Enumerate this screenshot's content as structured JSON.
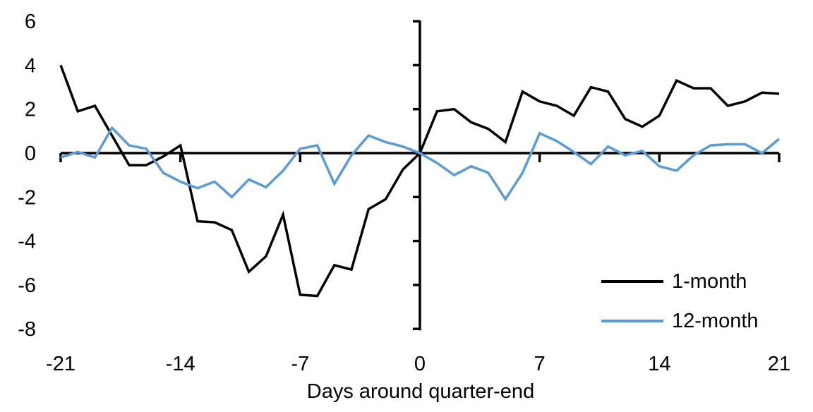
{
  "chart_data": {
    "type": "line",
    "title": "",
    "xlabel": "Days around quarter-end",
    "ylabel": "",
    "xlim": [
      -21,
      21
    ],
    "ylim": [
      -8,
      6
    ],
    "x_ticks": [
      -21,
      -14,
      -7,
      0,
      7,
      14,
      21
    ],
    "y_ticks": [
      6,
      4,
      2,
      0,
      -2,
      -4,
      -6,
      -8
    ],
    "grid": "off",
    "legend_position": "inside-lower-right",
    "background": "#FFFFFF",
    "axis_color": "#000000",
    "text_color": "#000000",
    "x": [
      -21,
      -20,
      -19,
      -18,
      -17,
      -16,
      -15,
      -14,
      -13,
      -12,
      -11,
      -10,
      -9,
      -8,
      -7,
      -6,
      -5,
      -4,
      -3,
      -2,
      -1,
      0,
      1,
      2,
      3,
      4,
      5,
      6,
      7,
      8,
      9,
      10,
      11,
      12,
      13,
      14,
      15,
      16,
      17,
      18,
      19,
      20,
      21
    ],
    "series": [
      {
        "name": "1-month",
        "color": "#000000",
        "values": [
          4.0,
          1.9,
          2.15,
          0.8,
          -0.55,
          -0.55,
          -0.15,
          0.35,
          -3.1,
          -3.15,
          -3.5,
          -5.4,
          -4.7,
          -2.8,
          -6.45,
          -6.5,
          -5.1,
          -5.3,
          -2.55,
          -2.1,
          -0.75,
          0.0,
          1.9,
          2.0,
          1.4,
          1.1,
          0.5,
          2.8,
          2.35,
          2.15,
          1.7,
          3.0,
          2.8,
          1.55,
          1.2,
          1.7,
          3.3,
          2.95,
          2.95,
          2.15,
          2.35,
          2.75,
          2.7
        ]
      },
      {
        "name": "12-month",
        "color": "#5B9BD5",
        "values": [
          -0.2,
          0.05,
          -0.2,
          1.15,
          0.35,
          0.2,
          -0.9,
          -1.3,
          -1.6,
          -1.3,
          -2.0,
          -1.2,
          -1.55,
          -0.8,
          0.2,
          0.35,
          -1.4,
          -0.1,
          0.8,
          0.5,
          0.3,
          0.0,
          -0.45,
          -1.0,
          -0.6,
          -0.9,
          -2.1,
          -0.9,
          0.9,
          0.55,
          0.05,
          -0.5,
          0.3,
          -0.1,
          0.1,
          -0.6,
          -0.8,
          -0.1,
          0.35,
          0.4,
          0.4,
          0.0,
          0.65
        ]
      }
    ]
  }
}
